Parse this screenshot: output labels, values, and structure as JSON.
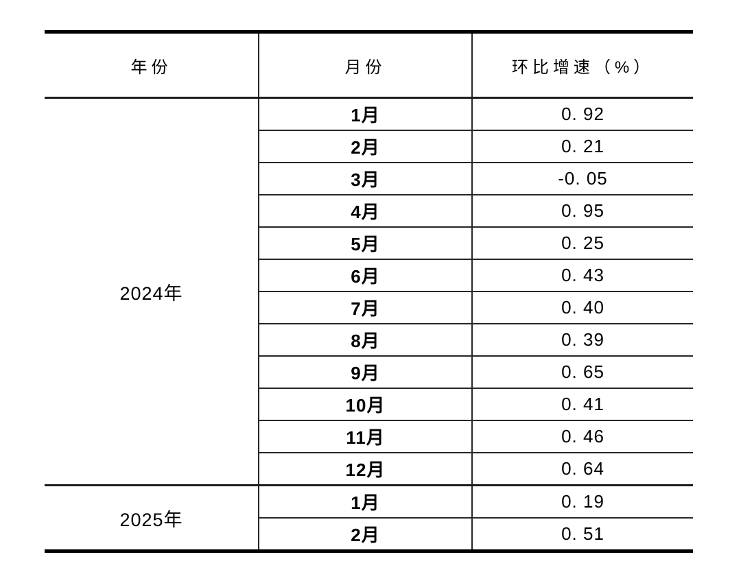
{
  "page": {
    "background_color": "#ffffff",
    "text_color": "#000000",
    "border_color": "#262626",
    "heavy_rule_color": "#000000"
  },
  "table": {
    "columns": [
      "年份",
      "月份",
      "环比增速（%）"
    ],
    "groups": [
      {
        "year": "2024年",
        "rows": [
          {
            "month": "1月",
            "growth": "0. 92",
            "value": 0.92
          },
          {
            "month": "2月",
            "growth": "0. 21",
            "value": 0.21
          },
          {
            "month": "3月",
            "growth": "-0. 05",
            "value": -0.05
          },
          {
            "month": "4月",
            "growth": "0. 95",
            "value": 0.95
          },
          {
            "month": "5月",
            "growth": "0. 25",
            "value": 0.25
          },
          {
            "month": "6月",
            "growth": "0. 43",
            "value": 0.43
          },
          {
            "month": "7月",
            "growth": "0. 40",
            "value": 0.4
          },
          {
            "month": "8月",
            "growth": "0. 39",
            "value": 0.39
          },
          {
            "month": "9月",
            "growth": "0. 65",
            "value": 0.65
          },
          {
            "month": "10月",
            "growth": "0. 41",
            "value": 0.41
          },
          {
            "month": "11月",
            "growth": "0. 46",
            "value": 0.46
          },
          {
            "month": "12月",
            "growth": "0. 64",
            "value": 0.64
          }
        ]
      },
      {
        "year": "2025年",
        "rows": [
          {
            "month": "1月",
            "growth": "0. 19",
            "value": 0.19
          },
          {
            "month": "2月",
            "growth": "0. 51",
            "value": 0.51
          }
        ]
      }
    ]
  }
}
